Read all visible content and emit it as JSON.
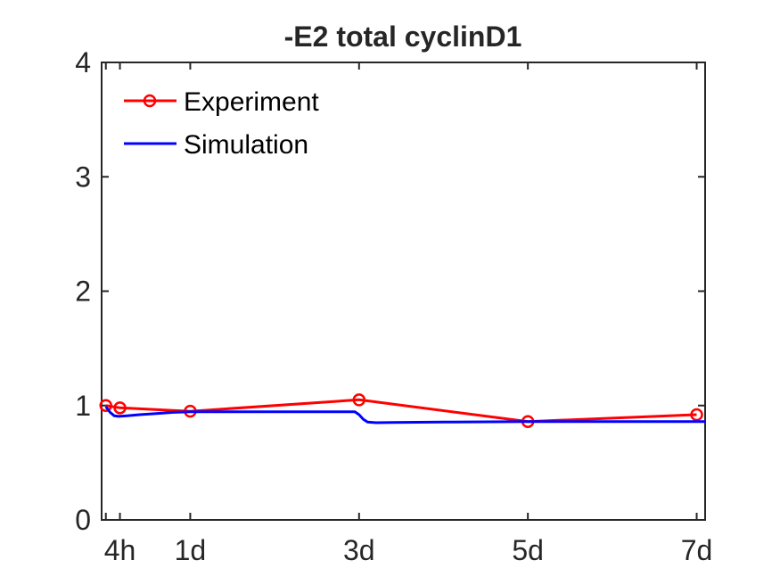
{
  "chart_data": {
    "type": "line",
    "title": "-E2 total cyclinD1",
    "xlabel": "",
    "ylabel": "",
    "xlim": [
      -0.05,
      7.1
    ],
    "ylim": [
      0,
      4
    ],
    "xticks": [
      0,
      0.167,
      1,
      3,
      5,
      7
    ],
    "xtick_labels": [
      "",
      "4h",
      "1d",
      "3d",
      "5d",
      "7d"
    ],
    "yticks": [
      0,
      1,
      2,
      3,
      4
    ],
    "ytick_labels": [
      "0",
      "1",
      "2",
      "3",
      "4"
    ],
    "grid": false,
    "legend_position": "top-left",
    "series": [
      {
        "name": "Experiment",
        "color": "#ff0000",
        "marker": "circle",
        "x": [
          0,
          0.167,
          1,
          3,
          5,
          7
        ],
        "y": [
          1.0,
          0.98,
          0.95,
          1.05,
          0.86,
          0.92
        ]
      },
      {
        "name": "Simulation",
        "color": "#0000ff",
        "marker": "none",
        "x": [
          0,
          0.05,
          0.1,
          0.15,
          0.25,
          0.4,
          0.6,
          0.8,
          1,
          1.5,
          2,
          2.5,
          2.95,
          3.0,
          3.05,
          3.1,
          3.2,
          3.4,
          4,
          5,
          6,
          7.1
        ],
        "y": [
          0.99,
          0.94,
          0.91,
          0.905,
          0.91,
          0.92,
          0.93,
          0.94,
          0.945,
          0.945,
          0.945,
          0.945,
          0.945,
          0.92,
          0.88,
          0.855,
          0.85,
          0.852,
          0.855,
          0.86,
          0.86,
          0.86
        ]
      }
    ]
  }
}
